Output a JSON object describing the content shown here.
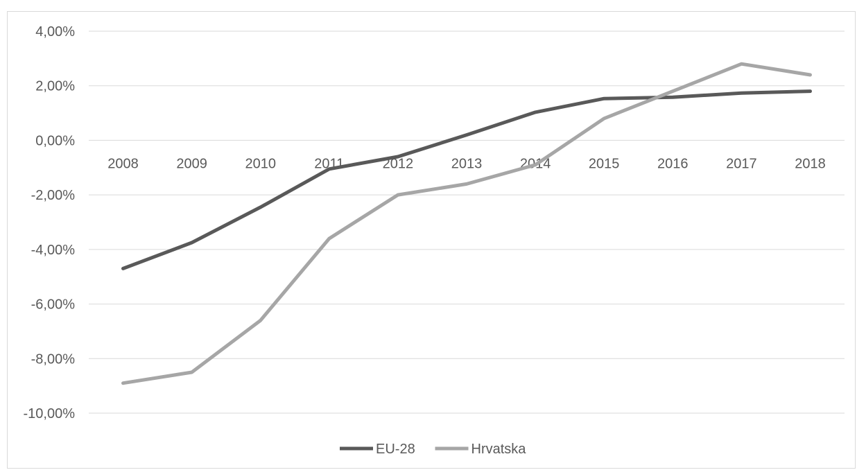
{
  "chart_data": {
    "type": "line",
    "title": "",
    "xlabel": "",
    "ylabel": "",
    "categories": [
      "2008",
      "2009",
      "2010",
      "2011",
      "2012",
      "2013",
      "2014",
      "2015",
      "2016",
      "2017",
      "2018"
    ],
    "y_ticks": [
      "4,00%",
      "2,00%",
      "0,00%",
      "-2,00%",
      "-4,00%",
      "-6,00%",
      "-8,00%",
      "-10,00%"
    ],
    "ylim": [
      -10,
      4
    ],
    "grid": true,
    "legend_position": "bottom",
    "series": [
      {
        "name": "EU-28",
        "color": "#595959",
        "values": [
          -4.7,
          -3.75,
          -2.45,
          -1.05,
          -0.6,
          0.2,
          1.03,
          1.53,
          1.58,
          1.73,
          1.8
        ]
      },
      {
        "name": "Hrvatska",
        "color": "#a6a6a6",
        "values": [
          -8.9,
          -8.5,
          -6.6,
          -3.6,
          -2.0,
          -1.6,
          -0.9,
          0.8,
          1.8,
          2.8,
          2.4
        ]
      }
    ]
  }
}
